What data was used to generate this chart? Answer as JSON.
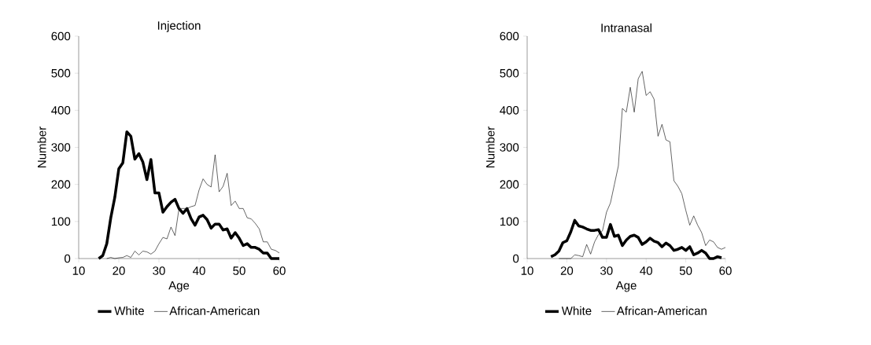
{
  "chart_data": [
    {
      "type": "line",
      "title": "Injection",
      "xlabel": "Age",
      "ylabel": "Number",
      "xlim": [
        10,
        60
      ],
      "xticks": [
        10,
        20,
        30,
        40,
        50,
        60
      ],
      "ylim": [
        0,
        600
      ],
      "yticks": [
        0,
        100,
        200,
        300,
        400,
        500,
        600
      ],
      "legend": "bottom",
      "grid": false,
      "line_style": "solid",
      "series": [
        {
          "name": "White",
          "color": "#000000",
          "x": [
            15,
            16,
            17,
            18,
            19,
            20,
            21,
            22,
            23,
            24,
            25,
            26,
            27,
            28,
            29,
            30,
            31,
            32,
            33,
            34,
            35,
            36,
            37,
            38,
            39,
            40,
            41,
            42,
            43,
            44,
            45,
            46,
            47,
            48,
            49,
            50,
            51,
            52,
            53,
            54,
            55,
            56,
            57,
            58,
            59,
            60
          ],
          "values": [
            0,
            8,
            40,
            110,
            165,
            242,
            258,
            342,
            330,
            268,
            283,
            260,
            213,
            267,
            177,
            177,
            125,
            140,
            152,
            160,
            135,
            122,
            135,
            108,
            90,
            112,
            117,
            105,
            82,
            93,
            93,
            77,
            80,
            55,
            70,
            55,
            35,
            40,
            30,
            30,
            25,
            15,
            15,
            0,
            0,
            0
          ]
        },
        {
          "name": "African-American",
          "color": "#000000",
          "x": [
            17,
            18,
            19,
            20,
            21,
            22,
            23,
            24,
            25,
            26,
            27,
            28,
            29,
            30,
            31,
            32,
            33,
            34,
            35,
            36,
            37,
            38,
            39,
            40,
            41,
            42,
            43,
            44,
            45,
            46,
            47,
            48,
            49,
            50,
            51,
            52,
            53,
            54,
            55,
            56,
            57,
            58,
            59,
            60
          ],
          "values": [
            0,
            3,
            0,
            2,
            3,
            8,
            3,
            20,
            10,
            20,
            18,
            12,
            20,
            40,
            57,
            53,
            85,
            62,
            135,
            135,
            135,
            140,
            143,
            185,
            215,
            200,
            193,
            280,
            180,
            195,
            230,
            143,
            155,
            135,
            135,
            110,
            107,
            95,
            80,
            45,
            45,
            25,
            22,
            15
          ]
        }
      ]
    },
    {
      "type": "line",
      "title": "Intranasal",
      "xlabel": "Age",
      "ylabel": "Number",
      "xlim": [
        10,
        60
      ],
      "xticks": [
        10,
        20,
        30,
        40,
        50,
        60
      ],
      "ylim": [
        0,
        600
      ],
      "yticks": [
        0,
        100,
        200,
        300,
        400,
        500,
        600
      ],
      "legend": "bottom",
      "grid": false,
      "line_style": "solid",
      "series": [
        {
          "name": "White",
          "color": "#000000",
          "x": [
            16,
            17,
            18,
            19,
            20,
            21,
            22,
            23,
            24,
            25,
            26,
            27,
            28,
            29,
            30,
            31,
            32,
            33,
            34,
            35,
            36,
            37,
            38,
            39,
            40,
            41,
            42,
            43,
            44,
            45,
            46,
            47,
            48,
            49,
            50,
            51,
            52,
            53,
            54,
            55,
            56,
            57,
            58,
            59
          ],
          "values": [
            5,
            10,
            20,
            43,
            48,
            72,
            103,
            88,
            85,
            80,
            76,
            76,
            78,
            57,
            57,
            92,
            60,
            63,
            35,
            50,
            60,
            63,
            57,
            38,
            45,
            55,
            47,
            43,
            32,
            42,
            35,
            22,
            25,
            30,
            22,
            32,
            10,
            15,
            22,
            15,
            0,
            0,
            5,
            2
          ]
        },
        {
          "name": "African-American",
          "color": "#000000",
          "x": [
            18,
            19,
            20,
            21,
            22,
            23,
            24,
            25,
            26,
            27,
            28,
            29,
            30,
            31,
            32,
            33,
            34,
            35,
            36,
            37,
            38,
            39,
            40,
            41,
            42,
            43,
            44,
            45,
            46,
            47,
            48,
            49,
            50,
            51,
            52,
            53,
            54,
            55,
            56,
            57,
            58,
            59,
            60
          ],
          "values": [
            0,
            0,
            0,
            0,
            10,
            8,
            5,
            38,
            12,
            45,
            65,
            75,
            125,
            150,
            200,
            250,
            405,
            395,
            462,
            395,
            485,
            505,
            440,
            450,
            430,
            330,
            362,
            320,
            315,
            210,
            195,
            175,
            130,
            90,
            115,
            90,
            70,
            35,
            50,
            45,
            30,
            25,
            30
          ]
        }
      ]
    }
  ]
}
